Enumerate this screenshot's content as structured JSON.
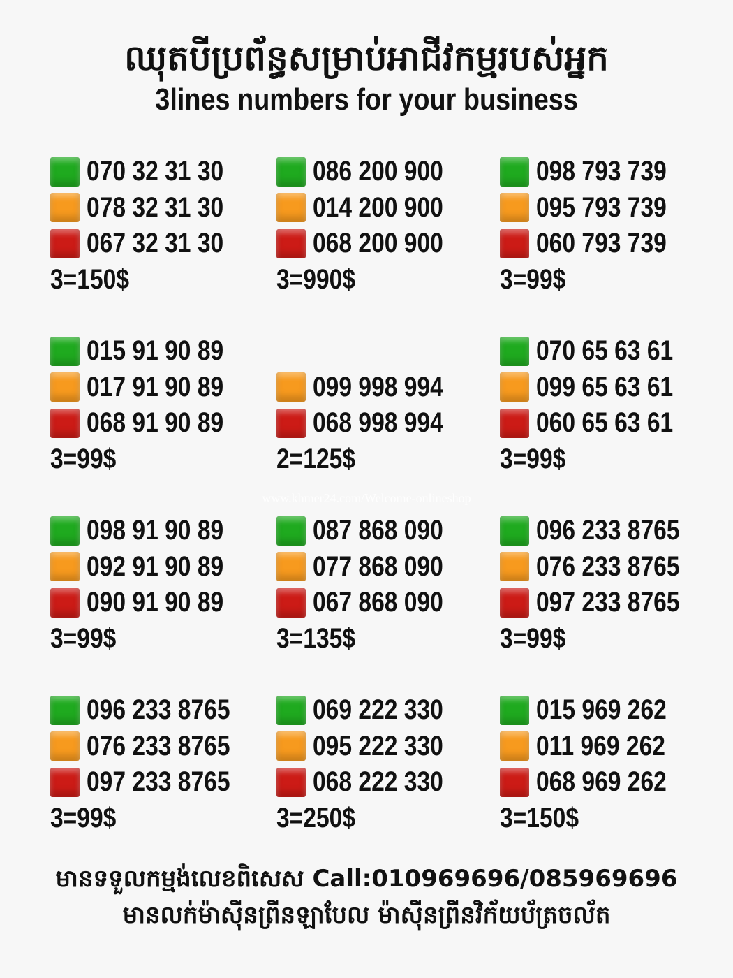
{
  "header": {
    "title_kh": "ឈុតបីប្រព័ន្ធសម្រាប់អាជីវកម្មរបស់អ្នក",
    "title_en": "3lines numbers for your business"
  },
  "colors": {
    "green": "#1faa1f",
    "orange": "#f79a1e",
    "red": "#cc1b16"
  },
  "blocks": [
    {
      "lines": [
        {
          "color": "green",
          "number": "070 32 31 30"
        },
        {
          "color": "orange",
          "number": "078 32 31 30"
        },
        {
          "color": "red",
          "number": "067 32 31 30"
        }
      ],
      "price": "3=150$"
    },
    {
      "lines": [
        {
          "color": "green",
          "number": "086 200 900"
        },
        {
          "color": "orange",
          "number": "014 200 900"
        },
        {
          "color": "red",
          "number": "068 200 900"
        }
      ],
      "price": "3=990$"
    },
    {
      "lines": [
        {
          "color": "green",
          "number": "098 793 739"
        },
        {
          "color": "orange",
          "number": "095 793 739"
        },
        {
          "color": "red",
          "number": "060 793 739"
        }
      ],
      "price": "3=99$"
    },
    {
      "lines": [
        {
          "color": "green",
          "number": "015 91 90 89"
        },
        {
          "color": "orange",
          "number": "017 91 90 89"
        },
        {
          "color": "red",
          "number": "068 91 90 89"
        }
      ],
      "price": "3=99$"
    },
    {
      "lines": [
        null,
        {
          "color": "orange",
          "number": "099 998 994"
        },
        {
          "color": "red",
          "number": "068 998 994"
        }
      ],
      "price": "2=125$"
    },
    {
      "lines": [
        {
          "color": "green",
          "number": "070 65 63 61"
        },
        {
          "color": "orange",
          "number": "099 65 63 61"
        },
        {
          "color": "red",
          "number": "060 65 63 61"
        }
      ],
      "price": "3=99$"
    },
    {
      "lines": [
        {
          "color": "green",
          "number": "098 91 90 89"
        },
        {
          "color": "orange",
          "number": "092 91 90 89"
        },
        {
          "color": "red",
          "number": "090 91 90 89"
        }
      ],
      "price": "3=99$"
    },
    {
      "lines": [
        {
          "color": "green",
          "number": "087 868 090"
        },
        {
          "color": "orange",
          "number": "077 868 090"
        },
        {
          "color": "red",
          "number": "067 868 090"
        }
      ],
      "price": "3=135$"
    },
    {
      "lines": [
        {
          "color": "green",
          "number": "096 233 8765"
        },
        {
          "color": "orange",
          "number": "076 233 8765"
        },
        {
          "color": "red",
          "number": "097 233 8765"
        }
      ],
      "price": "3=99$"
    },
    {
      "lines": [
        {
          "color": "green",
          "number": "096 233 8765"
        },
        {
          "color": "orange",
          "number": "076 233 8765"
        },
        {
          "color": "red",
          "number": "097 233 8765"
        }
      ],
      "price": "3=99$"
    },
    {
      "lines": [
        {
          "color": "green",
          "number": "069 222 330"
        },
        {
          "color": "orange",
          "number": "095 222 330"
        },
        {
          "color": "red",
          "number": "068 222 330"
        }
      ],
      "price": "3=250$"
    },
    {
      "lines": [
        {
          "color": "green",
          "number": "015 969 262"
        },
        {
          "color": "orange",
          "number": "011 969 262"
        },
        {
          "color": "red",
          "number": "068 969 262"
        }
      ],
      "price": "3=150$"
    }
  ],
  "watermark": "www.khmer24.com/Welcome-onlineshop",
  "footer": {
    "line1": "មានទទួលកម្មង់លេខពិសេស Call:010969696/085969696",
    "line2": "មានលក់ម៉ាស៊ីនព្រីនឡាបែល ម៉ាស៊ីនព្រីនវិក័យប័ត្រចល័ត"
  }
}
